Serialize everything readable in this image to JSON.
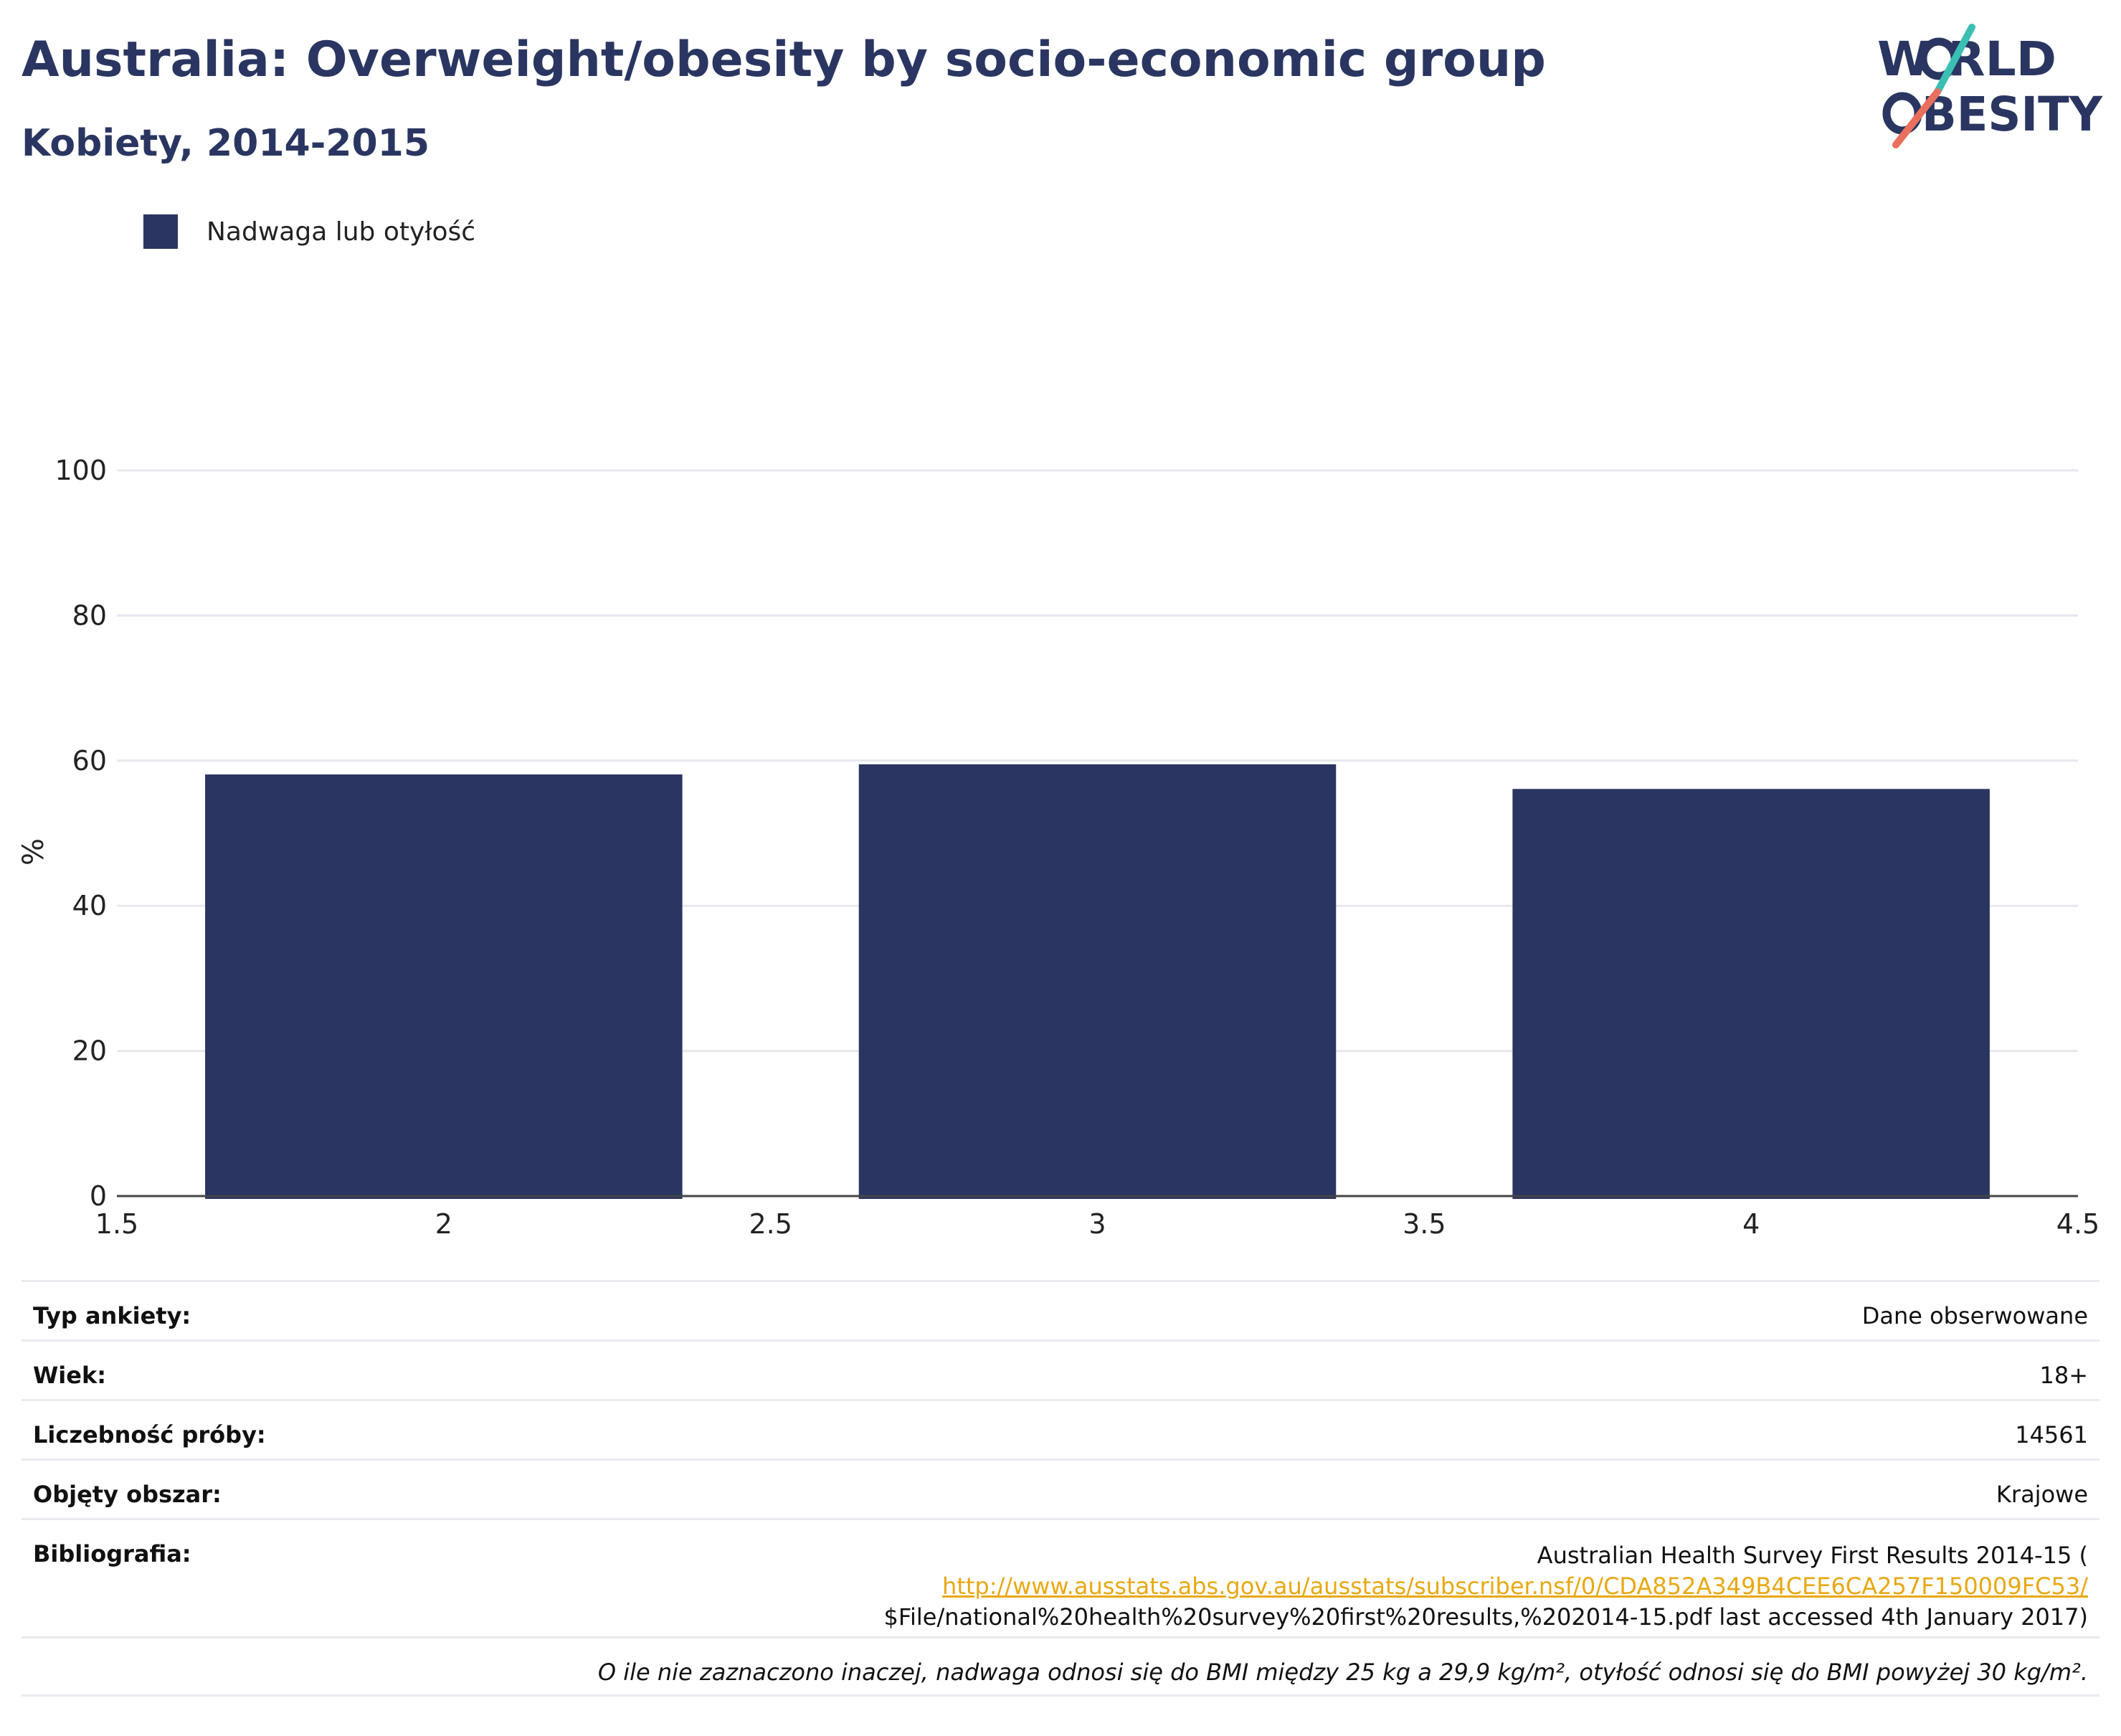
{
  "header": {
    "title": "Australia: Overweight/obesity by socio-economic group",
    "subtitle": "Kobiety, 2014-2015"
  },
  "logo": {
    "line1": "W RLD",
    "line2": "BESITY",
    "text": "WORLD OBESITY",
    "colors": {
      "text": "#2a3661",
      "slash_top": "#3bbfb3",
      "slash_bottom": "#e8705c"
    }
  },
  "colors": {
    "bar": "#2a3661",
    "grid": "#e6e8ee",
    "axis": "#444444",
    "link": "#e8a812"
  },
  "chart_data": {
    "type": "bar",
    "title": "",
    "xlabel": "",
    "ylabel": "%",
    "xlim": [
      1.5,
      4.5
    ],
    "ylim": [
      0,
      100
    ],
    "x_ticks": [
      "1.5",
      "2",
      "2.5",
      "3",
      "3.5",
      "4",
      "4.5"
    ],
    "y_ticks": [
      "0",
      "20",
      "40",
      "60",
      "80",
      "100"
    ],
    "legend_position": "top-left",
    "grid": true,
    "bar_width": 0.73,
    "series": [
      {
        "name": "Nadwaga lub otyłość",
        "color": "#2a3661",
        "x": [
          2,
          3,
          4
        ],
        "values": [
          58.1,
          59.5,
          56.1
        ]
      }
    ]
  },
  "info": {
    "survey_type": {
      "label": "Typ ankiety:",
      "value": "Dane obserwowane"
    },
    "age": {
      "label": "Wiek:",
      "value": "18+"
    },
    "sample_size": {
      "label": "Liczebność próby:",
      "value": "14561"
    },
    "area": {
      "label": "Objęty obszar:",
      "value": "Krajowe"
    },
    "bibliography": {
      "label": "Bibliografia:",
      "line1": "Australian Health Survey First Results 2014-15 (",
      "url": "http://www.ausstats.abs.gov.au/ausstats/subscriber.nsf/0/CDA852A349B4CEE6CA257F150009FC53/",
      "line3": "$File/national%20health%20survey%20first%20results,%202014-15.pdf last accessed 4th January 2017)"
    },
    "note": "O ile nie zaznaczono inaczej, nadwaga odnosi się do BMI między 25 kg a 29,9 kg/m², otyłość odnosi się do BMI powyżej 30 kg/m²."
  }
}
